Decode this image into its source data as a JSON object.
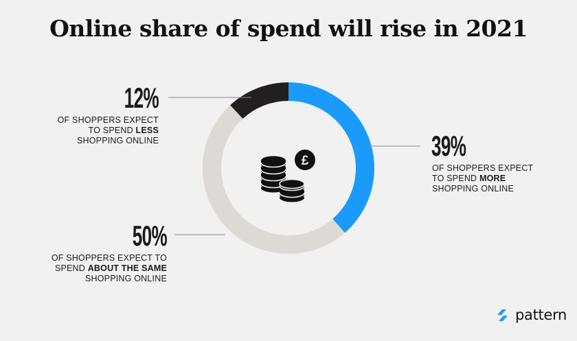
{
  "title": "Online share of spend will rise in 2021",
  "chart_data": {
    "type": "pie",
    "style": "donut",
    "categories": [
      "MORE",
      "ABOUT THE SAME",
      "LESS"
    ],
    "values": [
      39,
      50,
      12
    ],
    "value_labels": [
      "39%",
      "50%",
      "12%"
    ],
    "descriptions": [
      {
        "pre": "OF SHOPPERS EXPECT",
        "mid_pre": "TO SPEND ",
        "bold": "MORE",
        "post": "SHOPPING ONLINE"
      },
      {
        "pre": "OF SHOPPERS EXPECT TO",
        "mid_pre": "SPEND ",
        "bold": "ABOUT THE SAME",
        "post": "SHOPPING ONLINE"
      },
      {
        "pre": "OF SHOPPERS EXPECT",
        "mid_pre": "TO SPEND ",
        "bold": "LESS",
        "post": "SHOPPING ONLINE"
      }
    ],
    "colors": [
      "#1a9bfc",
      "#ddd9d4",
      "#221f20"
    ],
    "center_icon": "coins-with-pound-icon"
  },
  "logo": {
    "text": "pattern",
    "icon": "pattern-logo-icon",
    "color": "#1a9bfc"
  }
}
